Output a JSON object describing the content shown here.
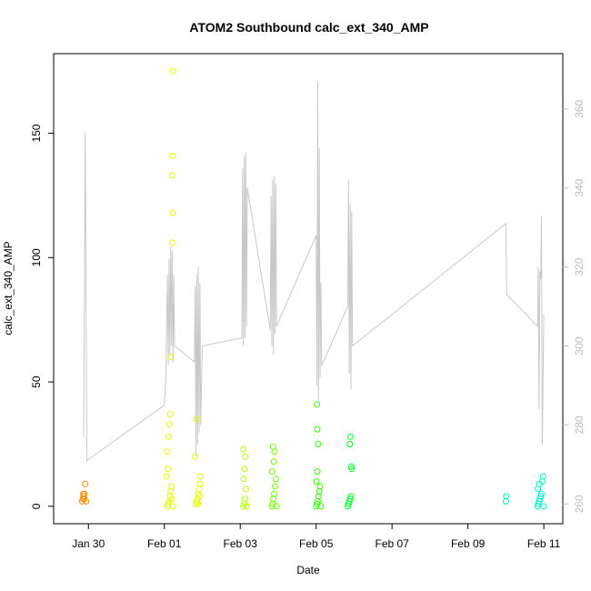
{
  "chart_data": {
    "type": "scatter",
    "title": "ATOM2 Southbound calc_ext_340_AMP",
    "xlabel": "Date",
    "ylabel": "calc_ext_340_AMP",
    "x_ticks": [
      {
        "date": "2021-01-30",
        "label": "Jan 30"
      },
      {
        "date": "2021-02-01",
        "label": "Feb 01"
      },
      {
        "date": "2021-02-03",
        "label": "Feb 03"
      },
      {
        "date": "2021-02-05",
        "label": "Feb 05"
      },
      {
        "date": "2021-02-07",
        "label": "Feb 07"
      },
      {
        "date": "2021-02-09",
        "label": "Feb 09"
      },
      {
        "date": "2021-02-11",
        "label": "Feb 11"
      }
    ],
    "xlim": [
      "2021-01-29T02:00",
      "2021-02-11T12:00"
    ],
    "ylim": [
      -7,
      182
    ],
    "y_ticks": [
      0,
      50,
      100,
      150
    ],
    "y2_ticks": [
      260,
      280,
      300,
      320,
      340,
      360
    ],
    "y2lim": [
      255,
      374
    ],
    "grid": false,
    "colors": {
      "line": "#c8c8c8",
      "right_axis": "#bdbdbd",
      "frame": "#000000"
    },
    "point_series": [
      {
        "color": "#ff8c00",
        "points": [
          [
            "2021-01-29T20:00",
            2
          ],
          [
            "2021-01-29T20:30",
            3
          ],
          [
            "2021-01-29T21:00",
            4
          ],
          [
            "2021-01-29T21:30",
            5
          ],
          [
            "2021-01-29T22:00",
            9
          ],
          [
            "2021-01-29T22:30",
            2
          ],
          [
            "2021-01-29T21:15",
            3
          ],
          [
            "2021-01-29T20:45",
            5
          ]
        ]
      },
      {
        "color": "#e6ff00",
        "points": [
          [
            "2021-02-01T02:00",
            0
          ],
          [
            "2021-02-01T02:30",
            1
          ],
          [
            "2021-02-01T03:00",
            2
          ],
          [
            "2021-02-01T03:30",
            4
          ],
          [
            "2021-02-01T04:00",
            6
          ],
          [
            "2021-02-01T04:30",
            8
          ],
          [
            "2021-02-01T01:30",
            12
          ],
          [
            "2021-02-01T02:15",
            15
          ],
          [
            "2021-02-01T01:45",
            22
          ],
          [
            "2021-02-01T02:45",
            28
          ],
          [
            "2021-02-01T03:15",
            33
          ],
          [
            "2021-02-01T03:45",
            37
          ],
          [
            "2021-02-01T04:15",
            60
          ],
          [
            "2021-02-01T05:00",
            106
          ],
          [
            "2021-02-01T05:15",
            118
          ],
          [
            "2021-02-01T05:00",
            133
          ],
          [
            "2021-02-01T05:15",
            141
          ],
          [
            "2021-02-01T05:30",
            175
          ],
          [
            "2021-02-01T05:30",
            0
          ],
          [
            "2021-02-01T04:45",
            3
          ],
          [
            "2021-02-01T20:00",
            1
          ],
          [
            "2021-02-01T20:30",
            2
          ],
          [
            "2021-02-01T21:00",
            3
          ],
          [
            "2021-02-01T21:30",
            5
          ],
          [
            "2021-02-01T22:00",
            7
          ],
          [
            "2021-02-01T22:30",
            9
          ],
          [
            "2021-02-01T23:00",
            12
          ],
          [
            "2021-02-01T19:30",
            20
          ],
          [
            "2021-02-01T20:15",
            35
          ],
          [
            "2021-02-01T21:15",
            1
          ],
          [
            "2021-02-01T22:15",
            4
          ]
        ]
      },
      {
        "color": "#b3ff00",
        "points": [
          [
            "2021-02-03T02:00",
            0
          ],
          [
            "2021-02-03T02:30",
            1
          ],
          [
            "2021-02-03T03:00",
            3
          ],
          [
            "2021-02-03T03:30",
            7
          ],
          [
            "2021-02-03T02:15",
            11
          ],
          [
            "2021-02-03T02:45",
            15
          ],
          [
            "2021-02-03T03:15",
            20
          ],
          [
            "2021-02-03T02:00",
            23
          ],
          [
            "2021-02-03T04:00",
            0
          ]
        ]
      },
      {
        "color": "#73ff00",
        "points": [
          [
            "2021-02-03T20:00",
            0
          ],
          [
            "2021-02-03T20:30",
            1
          ],
          [
            "2021-02-03T21:00",
            3
          ],
          [
            "2021-02-03T21:30",
            5
          ],
          [
            "2021-02-03T22:00",
            8
          ],
          [
            "2021-02-03T22:30",
            11
          ],
          [
            "2021-02-03T20:15",
            14
          ],
          [
            "2021-02-03T21:15",
            18
          ],
          [
            "2021-02-03T21:45",
            22
          ],
          [
            "2021-02-03T20:45",
            24
          ],
          [
            "2021-02-03T23:00",
            0
          ]
        ]
      },
      {
        "color": "#33ff00",
        "points": [
          [
            "2021-02-05T00:00",
            0
          ],
          [
            "2021-02-05T00:30",
            1
          ],
          [
            "2021-02-05T01:00",
            2
          ],
          [
            "2021-02-05T01:30",
            4
          ],
          [
            "2021-02-05T02:00",
            6
          ],
          [
            "2021-02-05T02:30",
            8
          ],
          [
            "2021-02-05T00:15",
            10
          ],
          [
            "2021-02-05T00:45",
            14
          ],
          [
            "2021-02-05T01:15",
            25
          ],
          [
            "2021-02-05T00:45",
            31
          ],
          [
            "2021-02-05T00:30",
            41
          ],
          [
            "2021-02-05T03:00",
            0
          ]
        ]
      },
      {
        "color": "#00ff2a",
        "points": [
          [
            "2021-02-05T20:00",
            0
          ],
          [
            "2021-02-05T20:30",
            1
          ],
          [
            "2021-02-05T21:00",
            2
          ],
          [
            "2021-02-05T21:30",
            3
          ],
          [
            "2021-02-05T22:00",
            4
          ],
          [
            "2021-02-05T22:30",
            15
          ],
          [
            "2021-02-05T22:15",
            16
          ],
          [
            "2021-02-05T21:15",
            25
          ],
          [
            "2021-02-05T21:45",
            28
          ]
        ]
      },
      {
        "color": "#00ffa0",
        "points": [
          [
            "2021-02-10T00:00",
            2
          ],
          [
            "2021-02-10T00:15",
            4
          ]
        ]
      },
      {
        "color": "#00f5d0",
        "points": [
          [
            "2021-02-10T20:00",
            0
          ],
          [
            "2021-02-10T20:30",
            1
          ],
          [
            "2021-02-10T21:00",
            2
          ],
          [
            "2021-02-10T21:30",
            3
          ],
          [
            "2021-02-10T22:00",
            4
          ],
          [
            "2021-02-10T22:30",
            5
          ],
          [
            "2021-02-10T20:15",
            7
          ],
          [
            "2021-02-10T21:15",
            9
          ],
          [
            "2021-02-10T23:00",
            10
          ],
          [
            "2021-02-10T23:30",
            12
          ],
          [
            "2021-02-11T00:00",
            0
          ]
        ]
      }
    ],
    "line_series": {
      "axis": "right",
      "points": [
        [
          "2021-01-29T21:00",
          277
        ],
        [
          "2021-01-29T22:00",
          354
        ],
        [
          "2021-01-29T23:00",
          271
        ],
        [
          "2021-02-01T00:00",
          285
        ],
        [
          "2021-02-01T01:00",
          292
        ],
        [
          "2021-02-01T02:00",
          318
        ],
        [
          "2021-02-01T02:30",
          295
        ],
        [
          "2021-02-01T03:00",
          322
        ],
        [
          "2021-02-01T03:30",
          298
        ],
        [
          "2021-02-01T04:00",
          325
        ],
        [
          "2021-02-01T04:30",
          300
        ],
        [
          "2021-02-01T05:00",
          324
        ],
        [
          "2021-02-01T05:30",
          296
        ],
        [
          "2021-02-01T06:00",
          318
        ],
        [
          "2021-02-01T06:30",
          300
        ],
        [
          "2021-02-01T19:00",
          296
        ],
        [
          "2021-02-01T19:30",
          315
        ],
        [
          "2021-02-01T20:00",
          272
        ],
        [
          "2021-02-01T20:30",
          318
        ],
        [
          "2021-02-01T21:00",
          275
        ],
        [
          "2021-02-01T21:30",
          320
        ],
        [
          "2021-02-01T22:00",
          278
        ],
        [
          "2021-02-01T22:30",
          316
        ],
        [
          "2021-02-01T23:00",
          280
        ],
        [
          "2021-02-02T00:00",
          300
        ],
        [
          "2021-02-03T01:00",
          302
        ],
        [
          "2021-02-03T01:30",
          345
        ],
        [
          "2021-02-03T02:00",
          300
        ],
        [
          "2021-02-03T02:30",
          348
        ],
        [
          "2021-02-03T03:00",
          302
        ],
        [
          "2021-02-03T03:30",
          349
        ],
        [
          "2021-02-03T04:00",
          305
        ],
        [
          "2021-02-03T04:30",
          340
        ],
        [
          "2021-02-03T19:00",
          304
        ],
        [
          "2021-02-03T19:30",
          338
        ],
        [
          "2021-02-03T20:00",
          300
        ],
        [
          "2021-02-03T20:30",
          342
        ],
        [
          "2021-02-03T21:00",
          298
        ],
        [
          "2021-02-03T21:30",
          343
        ],
        [
          "2021-02-03T22:00",
          303
        ],
        [
          "2021-02-03T22:30",
          341
        ],
        [
          "2021-02-03T23:00",
          305
        ],
        [
          "2021-02-05T00:00",
          328
        ],
        [
          "2021-02-05T00:30",
          290
        ],
        [
          "2021-02-05T01:00",
          367
        ],
        [
          "2021-02-05T01:30",
          286
        ],
        [
          "2021-02-05T02:00",
          350
        ],
        [
          "2021-02-05T02:30",
          292
        ],
        [
          "2021-02-05T03:00",
          316
        ],
        [
          "2021-02-05T03:30",
          295
        ],
        [
          "2021-02-05T20:00",
          310
        ],
        [
          "2021-02-05T20:30",
          342
        ],
        [
          "2021-02-05T21:00",
          293
        ],
        [
          "2021-02-05T21:30",
          336
        ],
        [
          "2021-02-05T22:00",
          289
        ],
        [
          "2021-02-05T22:30",
          334
        ],
        [
          "2021-02-05T23:00",
          300
        ],
        [
          "2021-02-10T00:00",
          331
        ],
        [
          "2021-02-10T00:30",
          313
        ],
        [
          "2021-02-10T20:00",
          305
        ],
        [
          "2021-02-10T20:30",
          320
        ],
        [
          "2021-02-10T21:00",
          284
        ],
        [
          "2021-02-10T21:30",
          319
        ],
        [
          "2021-02-10T22:00",
          317
        ],
        [
          "2021-02-10T22:30",
          333
        ],
        [
          "2021-02-10T23:00",
          275
        ],
        [
          "2021-02-11T00:00",
          308
        ]
      ]
    }
  }
}
